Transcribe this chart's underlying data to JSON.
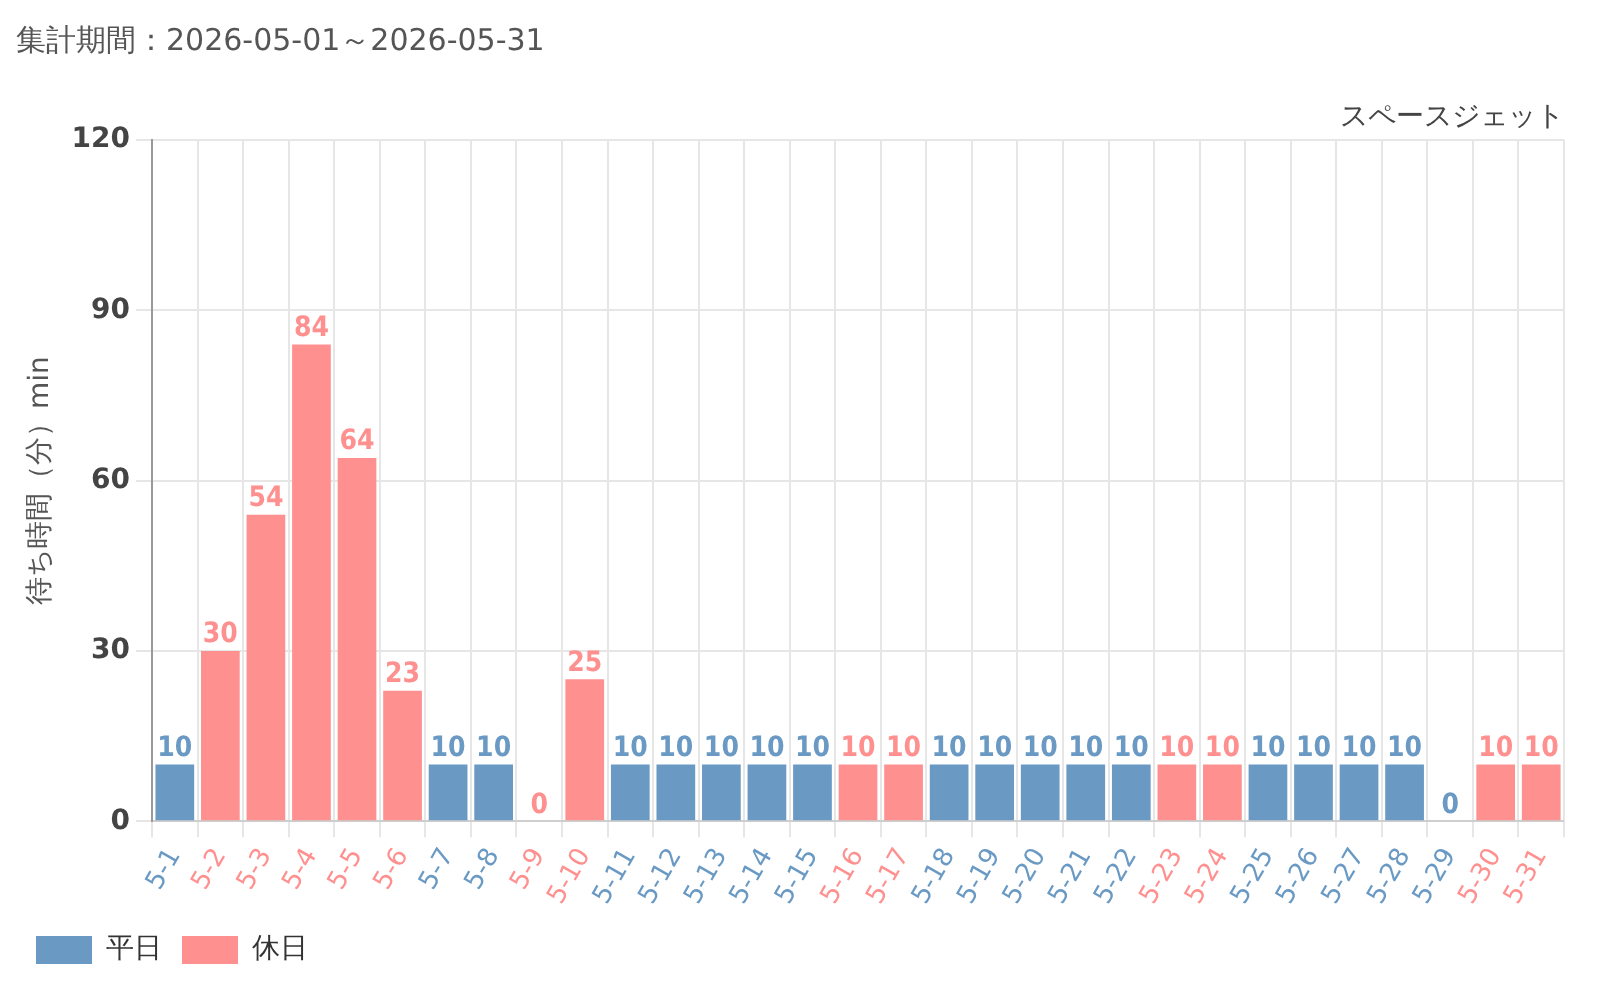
{
  "chart_data": {
    "type": "bar",
    "title": "集計期間：2026-05-01～2026-05-31",
    "ylabel": "待ち時間（分）min",
    "annotations": [
      "スペースジェット"
    ],
    "categories": [
      "5-1",
      "5-2",
      "5-3",
      "5-4",
      "5-5",
      "5-6",
      "5-7",
      "5-8",
      "5-9",
      "5-10",
      "5-11",
      "5-12",
      "5-13",
      "5-14",
      "5-15",
      "5-16",
      "5-17",
      "5-18",
      "5-19",
      "5-20",
      "5-21",
      "5-22",
      "5-23",
      "5-24",
      "5-25",
      "5-26",
      "5-27",
      "5-28",
      "5-29",
      "5-30",
      "5-31"
    ],
    "stacked": true,
    "series": [
      {
        "name": "平日",
        "color": "#6a9ac4",
        "values": [
          10,
          null,
          null,
          null,
          null,
          null,
          10,
          10,
          null,
          null,
          10,
          10,
          10,
          10,
          10,
          null,
          null,
          10,
          10,
          10,
          10,
          10,
          null,
          null,
          10,
          10,
          10,
          10,
          0,
          null,
          null
        ]
      },
      {
        "name": "休日",
        "color": "#ff9090",
        "values": [
          null,
          30,
          54,
          84,
          64,
          23,
          null,
          null,
          0,
          25,
          null,
          null,
          null,
          null,
          null,
          10,
          10,
          null,
          null,
          null,
          null,
          null,
          10,
          10,
          null,
          null,
          null,
          null,
          null,
          10,
          10
        ]
      }
    ],
    "ylim": [
      0,
      120
    ],
    "yticks": [
      0,
      30,
      60,
      90,
      120
    ],
    "grid": true,
    "legend": "bottom left",
    "data_labels": true
  }
}
